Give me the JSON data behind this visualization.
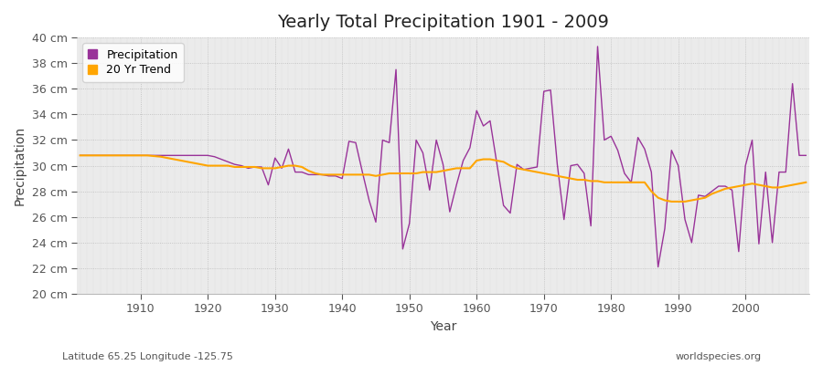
{
  "title": "Yearly Total Precipitation 1901 - 2009",
  "xlabel": "Year",
  "ylabel": "Precipitation",
  "subtitle": "Latitude 65.25 Longitude -125.75",
  "watermark": "worldspecies.org",
  "precip_color": "#993399",
  "trend_color": "#FFA500",
  "background_color": "#FFFFFF",
  "plot_bg_color": "#EBEBEB",
  "ylim": [
    20,
    40
  ],
  "yticks": [
    20,
    22,
    24,
    26,
    28,
    30,
    32,
    34,
    36,
    38,
    40
  ],
  "years": [
    1901,
    1902,
    1903,
    1904,
    1905,
    1906,
    1907,
    1908,
    1909,
    1910,
    1911,
    1912,
    1913,
    1914,
    1915,
    1916,
    1917,
    1918,
    1919,
    1920,
    1921,
    1922,
    1923,
    1924,
    1925,
    1926,
    1927,
    1928,
    1929,
    1930,
    1931,
    1932,
    1933,
    1934,
    1935,
    1936,
    1937,
    1938,
    1939,
    1940,
    1941,
    1942,
    1943,
    1944,
    1945,
    1946,
    1947,
    1948,
    1949,
    1950,
    1951,
    1952,
    1953,
    1954,
    1955,
    1956,
    1957,
    1958,
    1959,
    1960,
    1961,
    1962,
    1963,
    1964,
    1965,
    1966,
    1967,
    1968,
    1969,
    1970,
    1971,
    1972,
    1973,
    1974,
    1975,
    1976,
    1977,
    1978,
    1979,
    1980,
    1981,
    1982,
    1983,
    1984,
    1985,
    1986,
    1987,
    1988,
    1989,
    1990,
    1991,
    1992,
    1993,
    1994,
    1995,
    1996,
    1997,
    1998,
    1999,
    2000,
    2001,
    2002,
    2003,
    2004,
    2005,
    2006,
    2007,
    2008,
    2009
  ],
  "precipitation": [
    30.8,
    30.8,
    30.8,
    30.8,
    30.8,
    30.8,
    30.8,
    30.8,
    30.8,
    30.8,
    30.8,
    30.8,
    30.8,
    30.8,
    30.8,
    30.8,
    30.8,
    30.8,
    30.8,
    30.8,
    30.7,
    30.5,
    30.3,
    30.1,
    30.0,
    29.8,
    29.9,
    29.9,
    28.5,
    30.6,
    29.8,
    31.3,
    29.5,
    29.5,
    29.3,
    29.3,
    29.3,
    29.2,
    29.2,
    29.0,
    31.9,
    31.8,
    29.5,
    27.3,
    25.6,
    32.0,
    31.8,
    37.5,
    23.5,
    25.5,
    32.0,
    31.0,
    28.1,
    32.0,
    30.1,
    26.4,
    28.5,
    30.4,
    31.4,
    34.3,
    33.1,
    33.5,
    30.2,
    26.9,
    26.3,
    30.1,
    29.7,
    29.8,
    29.9,
    35.8,
    35.9,
    30.1,
    25.8,
    30.0,
    30.1,
    29.4,
    25.3,
    39.3,
    32.0,
    32.3,
    31.2,
    29.4,
    28.7,
    32.2,
    31.3,
    29.5,
    22.1,
    25.1,
    31.2,
    30.0,
    25.8,
    24.0,
    27.7,
    27.6,
    28.0,
    28.4,
    28.4,
    28.1,
    23.3,
    30.0,
    32.0,
    23.9,
    29.5,
    24.0,
    29.5,
    29.5,
    36.4,
    30.8,
    30.8
  ],
  "trend": [
    30.8,
    30.8,
    30.8,
    30.8,
    30.8,
    30.8,
    30.8,
    30.8,
    30.8,
    30.8,
    30.8,
    30.75,
    30.7,
    30.6,
    30.5,
    30.4,
    30.3,
    30.2,
    30.1,
    30.0,
    30.0,
    30.0,
    30.0,
    29.9,
    29.9,
    29.9,
    29.9,
    29.8,
    29.8,
    29.8,
    29.9,
    30.0,
    30.0,
    29.9,
    29.6,
    29.4,
    29.3,
    29.3,
    29.3,
    29.3,
    29.3,
    29.3,
    29.3,
    29.3,
    29.2,
    29.3,
    29.4,
    29.4,
    29.4,
    29.4,
    29.4,
    29.5,
    29.5,
    29.5,
    29.6,
    29.7,
    29.8,
    29.8,
    29.8,
    30.4,
    30.5,
    30.5,
    30.4,
    30.3,
    30.0,
    29.8,
    29.7,
    29.6,
    29.5,
    29.4,
    29.3,
    29.2,
    29.1,
    29.0,
    28.9,
    28.9,
    28.8,
    28.8,
    28.7,
    28.7,
    28.7,
    28.7,
    28.7,
    28.7,
    28.7,
    28.0,
    27.5,
    27.3,
    27.2,
    27.2,
    27.2,
    27.3,
    27.4,
    27.5,
    27.8,
    28.0,
    28.2,
    28.3,
    28.4,
    28.5,
    28.6,
    28.5,
    28.4,
    28.3,
    28.3,
    28.4,
    28.5,
    28.6,
    28.7
  ],
  "xtick_major": [
    1910,
    1920,
    1930,
    1940,
    1950,
    1960,
    1970,
    1980,
    1990,
    2000
  ],
  "title_fontsize": 14,
  "axis_label_fontsize": 10,
  "tick_fontsize": 9,
  "legend_fontsize": 9
}
